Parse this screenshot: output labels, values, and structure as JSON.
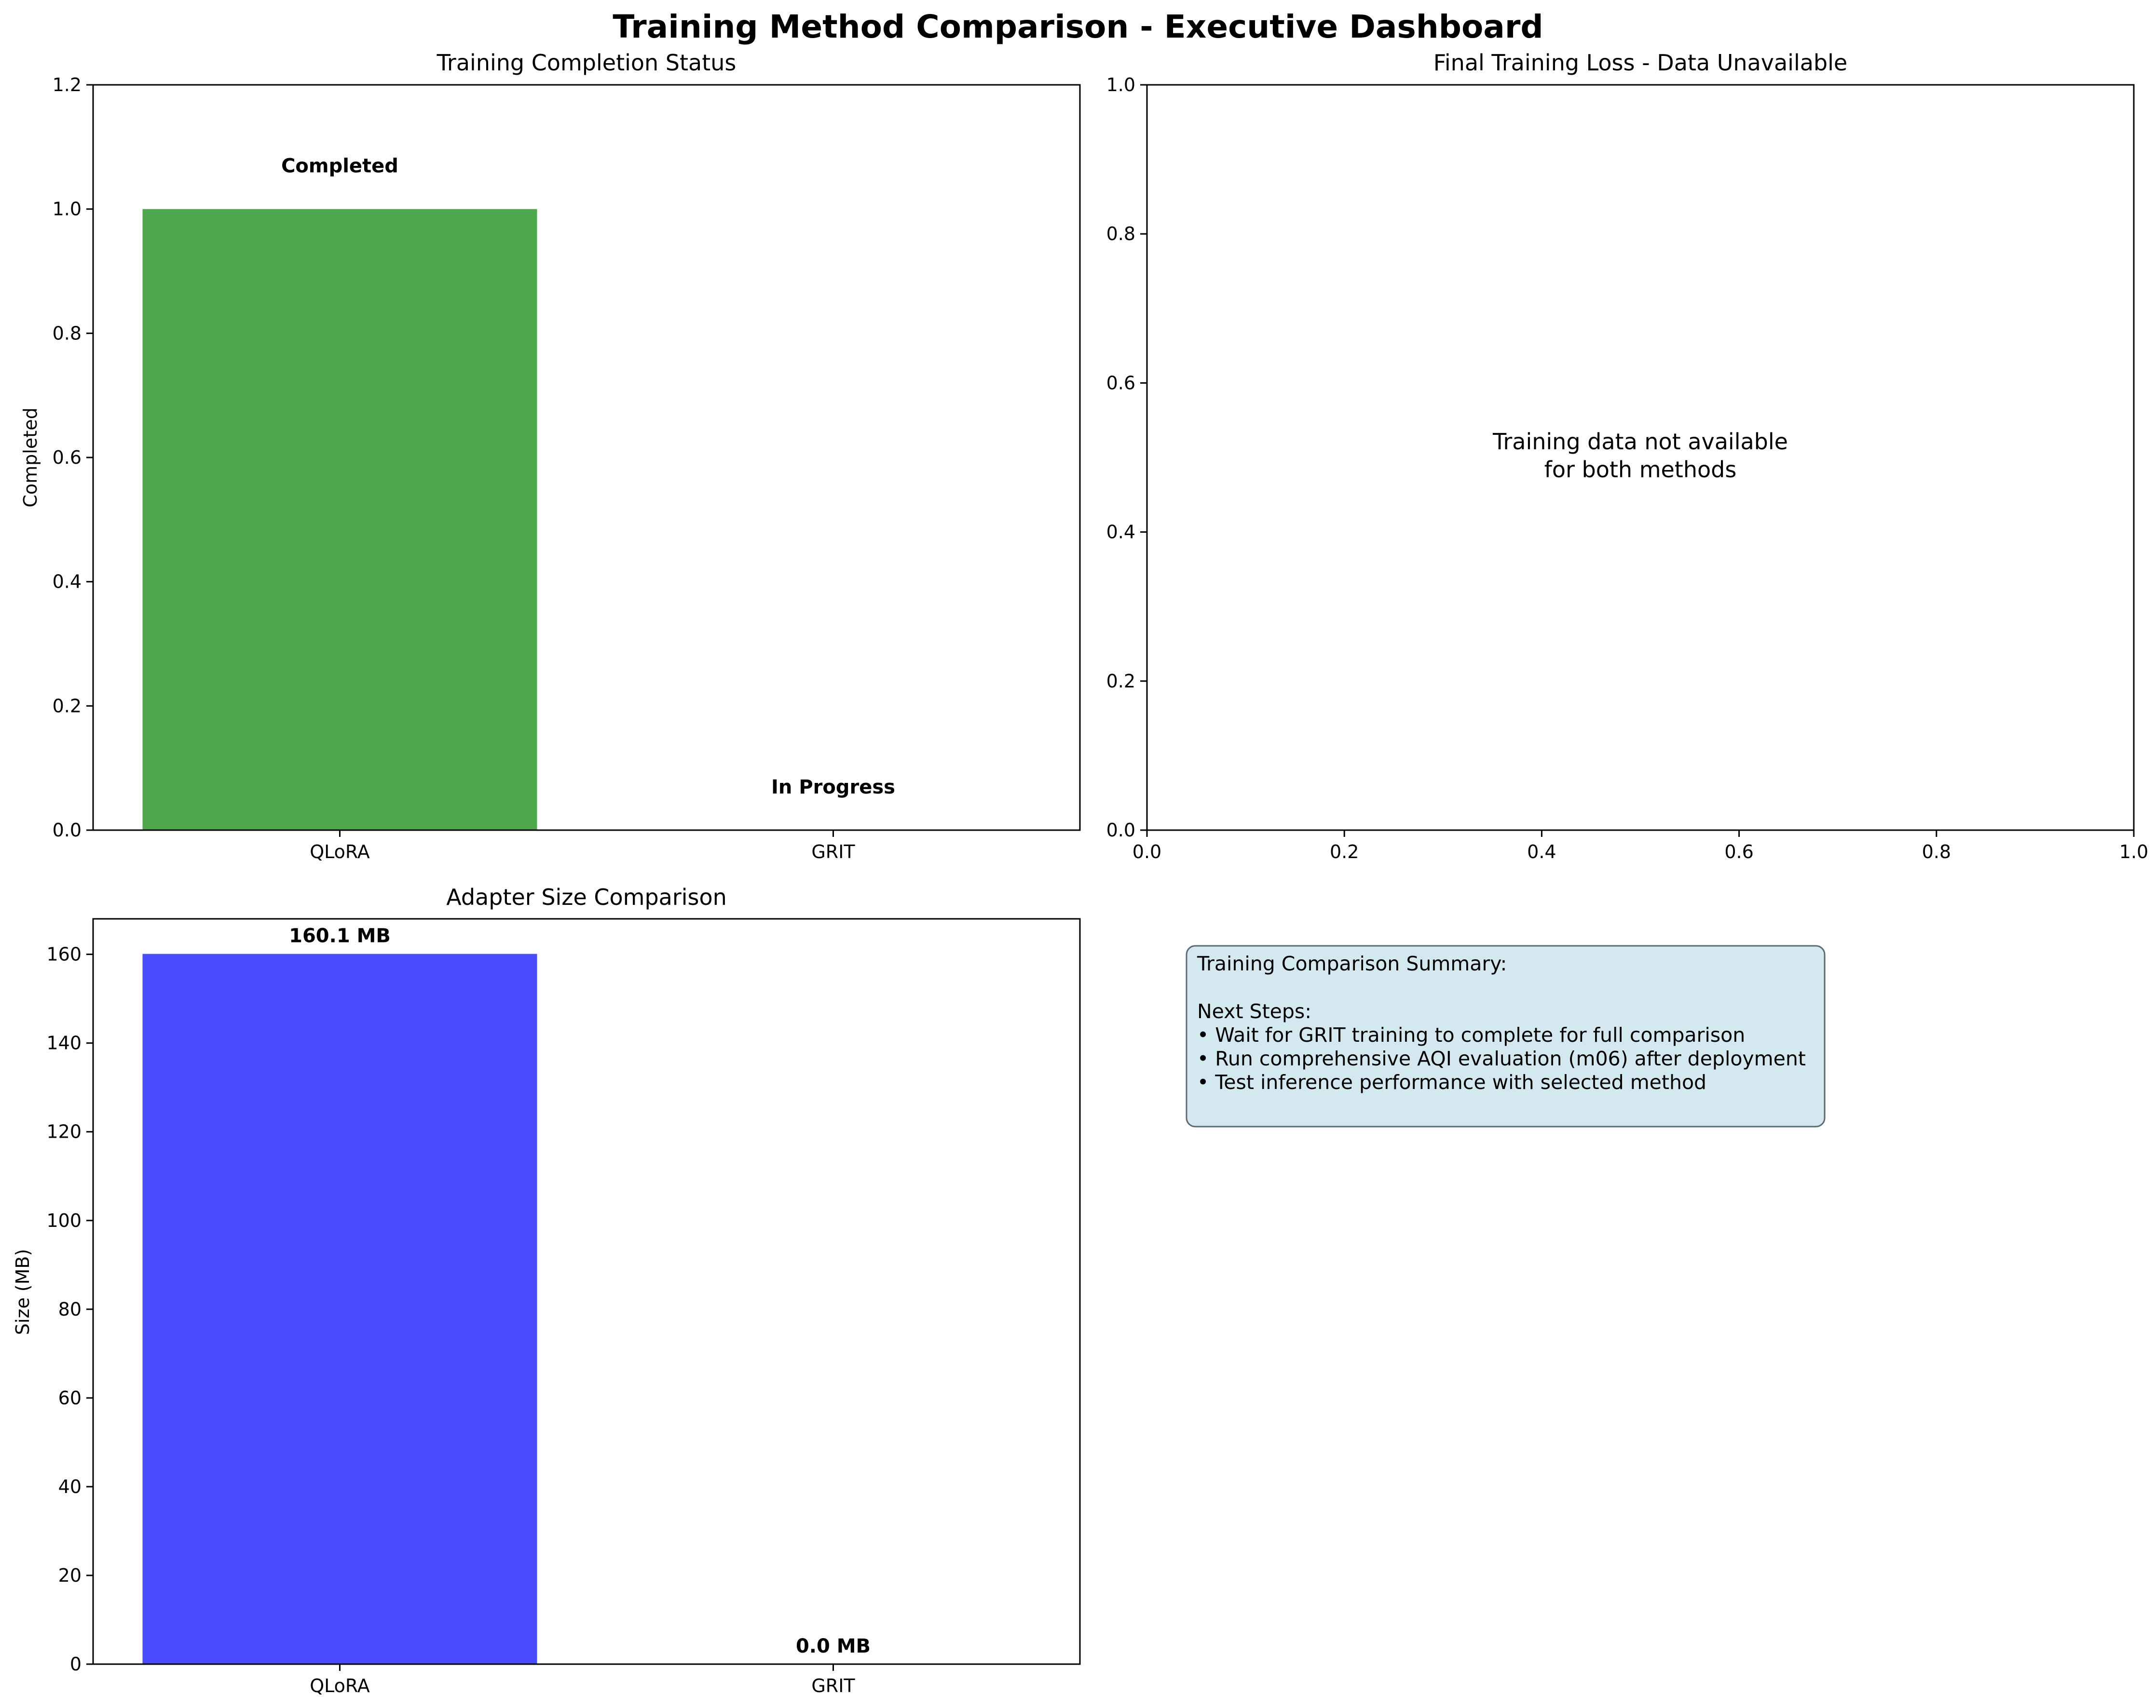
{
  "suptitle": "Training Method Comparison - Executive Dashboard",
  "chart_data": [
    {
      "type": "bar",
      "title": "Training Completion Status",
      "ylabel": "Completed",
      "xlabel": "",
      "categories": [
        "QLoRA",
        "GRIT"
      ],
      "values": [
        1,
        0
      ],
      "bar_labels": [
        "Completed",
        "In Progress"
      ],
      "ylim": [
        0,
        1.2
      ],
      "yticks": [
        "0.0",
        "0.2",
        "0.4",
        "0.6",
        "0.8",
        "1.0",
        "1.2"
      ],
      "color": "#4ea74c",
      "grid": false
    },
    {
      "type": "bar",
      "title": "Final Training Loss - Data Unavailable",
      "xlim": [
        0,
        1
      ],
      "ylim": [
        0,
        1
      ],
      "xticks": [
        "0.0",
        "0.2",
        "0.4",
        "0.6",
        "0.8",
        "1.0"
      ],
      "yticks": [
        "0.0",
        "0.2",
        "0.4",
        "0.6",
        "0.8",
        "1.0"
      ],
      "message": [
        "Training data not available",
        "for both methods"
      ],
      "grid": false
    },
    {
      "type": "bar",
      "title": "Adapter Size Comparison",
      "ylabel": "Size (MB)",
      "xlabel": "",
      "categories": [
        "QLoRA",
        "GRIT"
      ],
      "values": [
        160.1,
        0.0
      ],
      "bar_labels": [
        "160.1 MB",
        "0.0 MB"
      ],
      "ylim": [
        0,
        168
      ],
      "yticks": [
        "0",
        "20",
        "40",
        "60",
        "80",
        "100",
        "120",
        "140",
        "160"
      ],
      "color": "#4b4bff",
      "grid": false
    }
  ],
  "summary": {
    "lines": [
      "Training Comparison Summary:",
      "",
      "Next Steps:",
      "• Wait for GRIT training to complete for full comparison",
      "• Run comprehensive AQI evaluation (m06) after deployment",
      "• Test inference performance with selected method"
    ],
    "box_color": "#d4e9ef",
    "border_color": "#5a6a70"
  }
}
